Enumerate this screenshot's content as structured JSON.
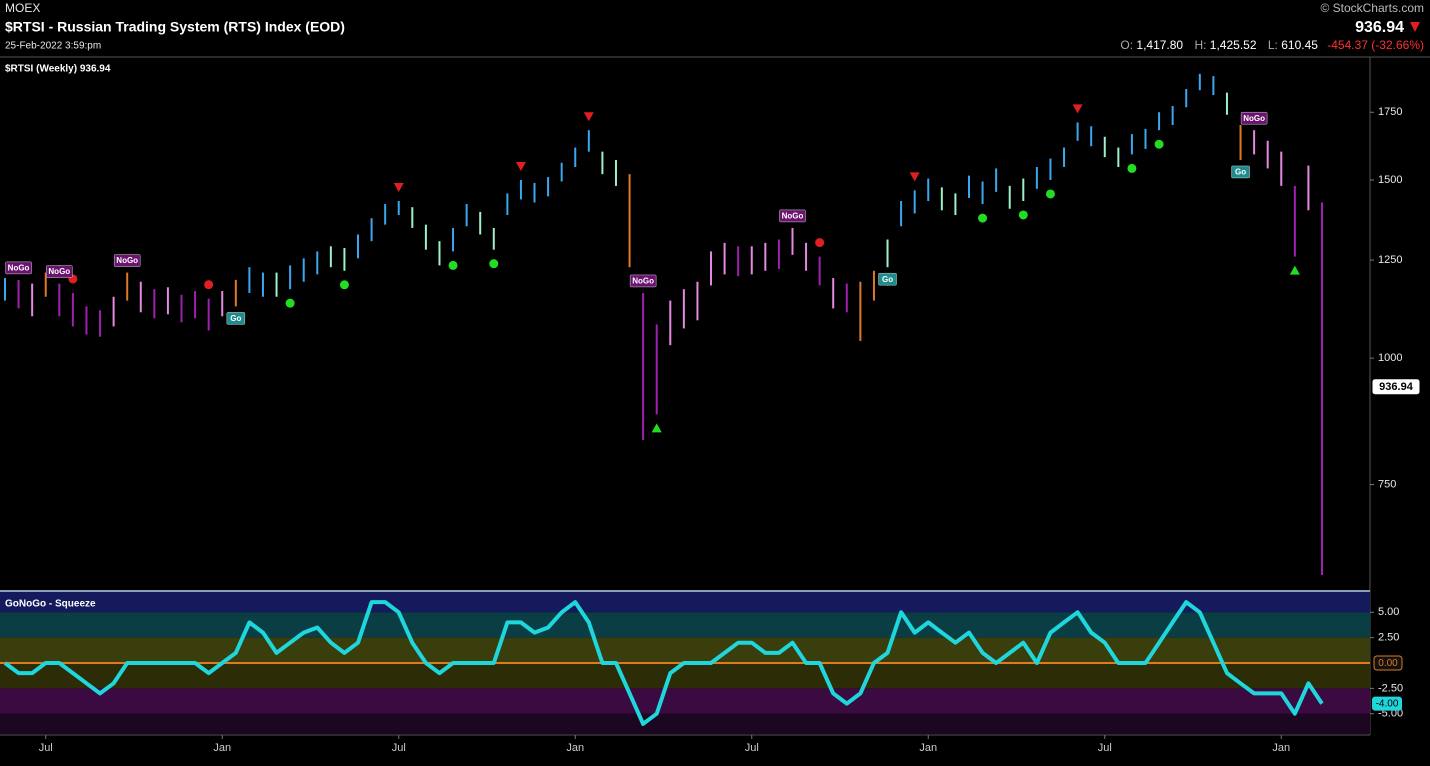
{
  "header": {
    "exchange": "MOEX",
    "title": "$RTSI - Russian Trading System (RTS) Index (EOD)",
    "date": "25-Feb-2022 3:59:pm",
    "credit": "© StockCharts.com",
    "price": "936.94",
    "open_label": "O:",
    "open": "1,417.80",
    "high_label": "H:",
    "high": "1,425.52",
    "low_label": "L:",
    "low": "610.45",
    "change": "-454.37 (-32.66%)"
  },
  "chart_data": [
    {
      "type": "ohlc",
      "title": "$RTSI (Weekly) 936.94",
      "log": true,
      "ylim": [
        590,
        1980
      ],
      "yticks": [
        750,
        1000,
        1250,
        1500,
        1750
      ],
      "last_value": 936.94,
      "last_value_color": "#ffffff",
      "high": [
        1200,
        1195,
        1185,
        1215,
        1185,
        1160,
        1125,
        1115,
        1150,
        1215,
        1190,
        1170,
        1175,
        1155,
        1165,
        1145,
        1165,
        1195,
        1230,
        1215,
        1215,
        1235,
        1255,
        1275,
        1290,
        1285,
        1325,
        1375,
        1420,
        1430,
        1410,
        1355,
        1305,
        1345,
        1420,
        1395,
        1345,
        1455,
        1500,
        1490,
        1510,
        1560,
        1615,
        1680,
        1600,
        1570,
        1520,
        1160,
        1080,
        1140,
        1170,
        1190,
        1275,
        1300,
        1290,
        1290,
        1300,
        1310,
        1345,
        1300,
        1260,
        1200,
        1185,
        1190,
        1220,
        1310,
        1430,
        1465,
        1505,
        1475,
        1455,
        1515,
        1495,
        1540,
        1480,
        1505,
        1545,
        1575,
        1615,
        1710,
        1695,
        1655,
        1615,
        1665,
        1685,
        1750,
        1775,
        1845,
        1910,
        1900,
        1830,
        1700,
        1680,
        1640,
        1600,
        1480,
        1550,
        1425.52
      ],
      "low": [
        1140,
        1120,
        1100,
        1150,
        1100,
        1075,
        1055,
        1050,
        1075,
        1140,
        1110,
        1095,
        1105,
        1085,
        1095,
        1065,
        1100,
        1125,
        1160,
        1150,
        1150,
        1170,
        1190,
        1210,
        1230,
        1220,
        1255,
        1305,
        1355,
        1385,
        1345,
        1280,
        1235,
        1275,
        1350,
        1325,
        1280,
        1385,
        1435,
        1425,
        1445,
        1495,
        1545,
        1600,
        1520,
        1480,
        1230,
        830,
        880,
        1030,
        1070,
        1090,
        1180,
        1210,
        1205,
        1210,
        1220,
        1225,
        1265,
        1220,
        1180,
        1120,
        1110,
        1040,
        1140,
        1230,
        1350,
        1390,
        1430,
        1400,
        1385,
        1440,
        1420,
        1460,
        1405,
        1430,
        1470,
        1500,
        1545,
        1640,
        1620,
        1580,
        1545,
        1590,
        1610,
        1680,
        1700,
        1770,
        1840,
        1820,
        1740,
        1570,
        1590,
        1540,
        1480,
        1260,
        1400,
        610.45
      ],
      "colors": [
        "#3aa8f0",
        "#a020b0",
        "#e58ae0",
        "#e0782a",
        "#a020b0",
        "#a020b0",
        "#a020b0",
        "#a020b0",
        "#e58ae0",
        "#e0782a",
        "#e58ae0",
        "#a020b0",
        "#e58ae0",
        "#a020b0",
        "#a020b0",
        "#a020b0",
        "#e58ae0",
        "#e0782a",
        "#3aa8f0",
        "#3aa8f0",
        "#9ef0c8",
        "#3aa8f0",
        "#3aa8f0",
        "#3aa8f0",
        "#9ef0c8",
        "#9ef0c8",
        "#3aa8f0",
        "#3aa8f0",
        "#3aa8f0",
        "#3aa8f0",
        "#9ef0c8",
        "#9ef0c8",
        "#9ef0c8",
        "#3aa8f0",
        "#3aa8f0",
        "#9ef0c8",
        "#9ef0c8",
        "#3aa8f0",
        "#3aa8f0",
        "#3aa8f0",
        "#3aa8f0",
        "#3aa8f0",
        "#3aa8f0",
        "#3aa8f0",
        "#9ef0c8",
        "#9ef0c8",
        "#e0782a",
        "#a020b0",
        "#a020b0",
        "#e58ae0",
        "#e58ae0",
        "#e58ae0",
        "#e58ae0",
        "#e58ae0",
        "#a020b0",
        "#e58ae0",
        "#e58ae0",
        "#a020b0",
        "#e58ae0",
        "#e58ae0",
        "#a020b0",
        "#e58ae0",
        "#a020b0",
        "#e0782a",
        "#e0782a",
        "#9ef0c8",
        "#3aa8f0",
        "#3aa8f0",
        "#3aa8f0",
        "#9ef0c8",
        "#9ef0c8",
        "#3aa8f0",
        "#3aa8f0",
        "#3aa8f0",
        "#9ef0c8",
        "#9ef0c8",
        "#3aa8f0",
        "#3aa8f0",
        "#3aa8f0",
        "#3aa8f0",
        "#3aa8f0",
        "#9ef0c8",
        "#9ef0c8",
        "#3aa8f0",
        "#3aa8f0",
        "#3aa8f0",
        "#3aa8f0",
        "#3aa8f0",
        "#3aa8f0",
        "#3aa8f0",
        "#9ef0c8",
        "#e0782a",
        "#e58ae0",
        "#e58ae0",
        "#e58ae0",
        "#a020b0",
        "#e58ae0",
        "#a020b0"
      ],
      "signals": [
        null,
        "NoGo",
        null,
        null,
        "NoGo",
        null,
        null,
        null,
        null,
        "NoGo",
        null,
        null,
        null,
        null,
        null,
        null,
        null,
        "Go",
        null,
        null,
        null,
        null,
        null,
        null,
        null,
        null,
        null,
        null,
        null,
        null,
        null,
        null,
        null,
        null,
        null,
        null,
        null,
        null,
        null,
        null,
        null,
        null,
        null,
        null,
        null,
        null,
        null,
        "NoGo",
        null,
        null,
        null,
        null,
        null,
        null,
        null,
        null,
        null,
        null,
        "NoGo",
        null,
        null,
        null,
        null,
        null,
        null,
        "Go",
        null,
        null,
        null,
        null,
        null,
        null,
        null,
        null,
        null,
        null,
        null,
        null,
        null,
        null,
        null,
        null,
        null,
        null,
        null,
        null,
        null,
        null,
        null,
        null,
        null,
        "Go",
        "NoGo",
        null,
        null,
        null,
        null,
        null
      ]
    },
    {
      "type": "line",
      "title": "GoNoGo - Squeeze",
      "color": "#1fd6dc",
      "categories": [
        null,
        null,
        null,
        "Jul",
        null,
        null,
        null,
        null,
        null,
        null,
        null,
        null,
        null,
        null,
        null,
        null,
        "Jan",
        null,
        null,
        null,
        null,
        null,
        null,
        null,
        null,
        null,
        null,
        null,
        null,
        "Jul",
        null,
        null,
        null,
        null,
        null,
        null,
        null,
        null,
        null,
        null,
        null,
        null,
        "Jan",
        null,
        null,
        null,
        null,
        null,
        null,
        null,
        null,
        null,
        null,
        null,
        null,
        "Jul",
        null,
        null,
        null,
        null,
        null,
        null,
        null,
        null,
        null,
        null,
        null,
        null,
        "Jan",
        null,
        null,
        null,
        null,
        null,
        null,
        null,
        null,
        null,
        null,
        null,
        null,
        "Jul",
        null,
        null,
        null,
        null,
        null,
        null,
        null,
        null,
        null,
        null,
        null,
        null,
        "Jan",
        null,
        null,
        null
      ],
      "values": [
        0,
        -1,
        -1,
        0,
        0,
        -1,
        -2,
        -3,
        -2,
        0,
        0,
        0,
        0,
        0,
        0,
        -1,
        0,
        1,
        4,
        3,
        1,
        2,
        3,
        3.5,
        2,
        1,
        2,
        6,
        6,
        5,
        2,
        0,
        -1,
        0,
        0,
        0,
        0,
        4,
        4,
        3,
        3.5,
        5,
        6,
        4,
        0,
        0,
        -3,
        -6,
        -5,
        -1,
        0,
        0,
        0,
        1,
        2,
        2,
        1,
        1,
        2,
        0,
        0,
        -3,
        -4,
        -3,
        0,
        1,
        5,
        3,
        4,
        3,
        2,
        3,
        1,
        0,
        1,
        2,
        0,
        3,
        4,
        5,
        3,
        2,
        0,
        0,
        0,
        2,
        4,
        6,
        5,
        2,
        -1,
        -2,
        -3,
        -3,
        -3,
        -5,
        -2,
        -4
      ],
      "value_labels": [
        null,
        null,
        null,
        null,
        null,
        null,
        null,
        null,
        null,
        null,
        null,
        null,
        null,
        null,
        null,
        null,
        null,
        null,
        null,
        null,
        null,
        null,
        null,
        null,
        null,
        null,
        null,
        null,
        null,
        null,
        null,
        null,
        null,
        null,
        null,
        null,
        null,
        null,
        null,
        null,
        null,
        null,
        null,
        null,
        null,
        null,
        null,
        null,
        null,
        null,
        null,
        null,
        null,
        null,
        null,
        null,
        null,
        null,
        null,
        null,
        null,
        null,
        null,
        null,
        null,
        null,
        null,
        null,
        null,
        null,
        null,
        null,
        null,
        null,
        null,
        null,
        null,
        null,
        null,
        null,
        null,
        null,
        null,
        null,
        null,
        null,
        null,
        null,
        null,
        null,
        null,
        null,
        null,
        null,
        null,
        null,
        null,
        "-4.00"
      ],
      "ylim": [
        -7,
        7
      ],
      "yticks": [
        {
          "value": 5,
          "label": "5.00"
        },
        {
          "value": 2.5,
          "label": "2.50"
        },
        {
          "value": -2.5,
          "label": "-2.50"
        },
        {
          "value": -5,
          "label": "-5.00"
        }
      ],
      "zero_line": {
        "value": 0,
        "label": "0.00",
        "color": "#e07a20"
      }
    }
  ]
}
